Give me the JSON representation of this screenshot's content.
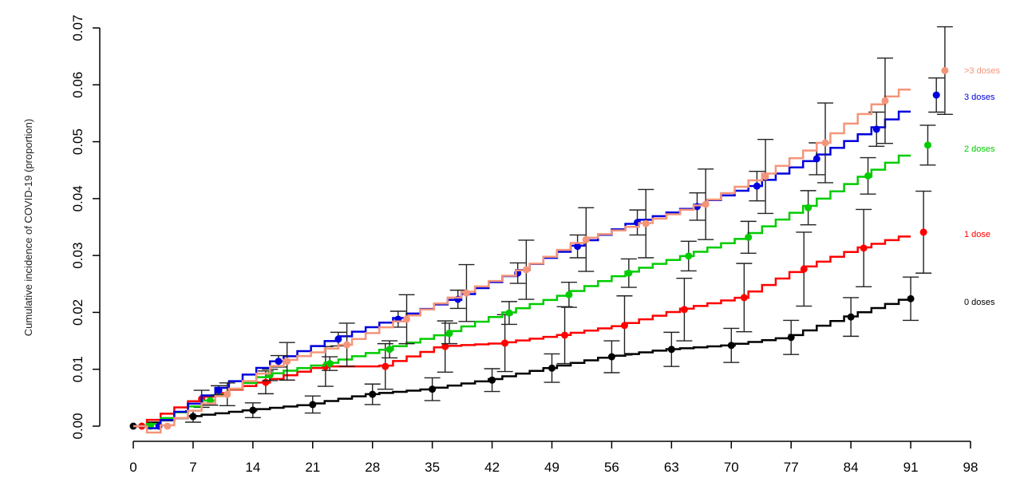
{
  "chart_data": {
    "type": "line",
    "title": "",
    "xlabel": "",
    "ylabel": "Cumulative incidence of COVID-19 (proportion)",
    "xlim": [
      0,
      98
    ],
    "ylim": [
      0,
      0.07
    ],
    "xticks": [
      "0",
      "7",
      "14",
      "21",
      "28",
      "35",
      "42",
      "49",
      "56",
      "63",
      "70",
      "77",
      "84",
      "91",
      "98"
    ],
    "yticks": [
      "0.00",
      "0.01",
      "0.02",
      "0.03",
      "0.04",
      "0.05",
      "0.06",
      "0.07"
    ],
    "grid": false,
    "legend_placement": "right, inline labels",
    "series": [
      {
        "name": "0 doses",
        "label": "0 doses",
        "color": "#000000",
        "x": [
          0,
          7,
          14,
          21,
          28,
          35,
          42,
          49,
          56,
          63,
          70,
          77,
          84,
          91
        ],
        "y": [
          0,
          0.0017,
          0.0028,
          0.0038,
          0.0056,
          0.0065,
          0.0081,
          0.0102,
          0.0122,
          0.0135,
          0.0142,
          0.0156,
          0.0192,
          0.0224
        ],
        "err": [
          0,
          0.001,
          0.0013,
          0.0015,
          0.0018,
          0.002,
          0.002,
          0.0025,
          0.0028,
          0.003,
          0.003,
          0.003,
          0.0034,
          0.0038
        ]
      },
      {
        "name": "1 dose",
        "label": "1 dose",
        "color": "#ff0000",
        "x": [
          1,
          8,
          15.5,
          22.5,
          29.5,
          36.5,
          43.5,
          50.5,
          57.5,
          64.5,
          71.5,
          78.5,
          85.5,
          92.5
        ],
        "y": [
          0,
          0.0048,
          0.0077,
          0.0105,
          0.0105,
          0.014,
          0.0146,
          0.016,
          0.0177,
          0.0205,
          0.0226,
          0.0276,
          0.0313,
          0.0341
        ],
        "err": [
          0,
          0.0015,
          0.002,
          0.0035,
          0.004,
          0.0045,
          0.005,
          0.005,
          0.0052,
          0.0055,
          0.006,
          0.0065,
          0.0068,
          0.0072
        ]
      },
      {
        "name": "2 doses",
        "label": "2 doses",
        "color": "#00cc00",
        "x": [
          2,
          9,
          16,
          23,
          30,
          37,
          44,
          51,
          58,
          65,
          72,
          79,
          86,
          93
        ],
        "y": [
          0,
          0.0045,
          0.009,
          0.011,
          0.0135,
          0.0163,
          0.0199,
          0.0231,
          0.0269,
          0.0299,
          0.0332,
          0.0384,
          0.044,
          0.0494
        ],
        "err": [
          0,
          0.0008,
          0.001,
          0.0012,
          0.0015,
          0.0018,
          0.002,
          0.0022,
          0.0025,
          0.0026,
          0.0028,
          0.003,
          0.0032,
          0.0035
        ]
      },
      {
        "name": "3 doses",
        "label": "3 doses",
        "color": "#0000dd",
        "x": [
          3,
          10,
          17,
          24,
          31,
          38,
          45,
          52,
          59,
          66,
          73,
          80,
          87,
          94
        ],
        "y": [
          0,
          0.0063,
          0.0114,
          0.0153,
          0.0188,
          0.0223,
          0.0269,
          0.0316,
          0.0358,
          0.0386,
          0.0422,
          0.047,
          0.0522,
          0.0582
        ],
        "err": [
          0,
          0.0008,
          0.001,
          0.0012,
          0.0014,
          0.0016,
          0.0018,
          0.002,
          0.0022,
          0.0024,
          0.0026,
          0.0028,
          0.003,
          0.003
        ]
      },
      {
        "name": ">3 doses",
        "label": ">3 doses",
        "color": "#f4957a",
        "x": [
          4,
          11,
          18,
          25,
          32,
          39,
          46,
          53,
          60,
          67,
          74,
          81,
          88,
          95
        ],
        "y": [
          0,
          0.0056,
          0.0114,
          0.0143,
          0.0188,
          0.0234,
          0.0275,
          0.0328,
          0.0356,
          0.039,
          0.0439,
          0.0498,
          0.0572,
          0.0625
        ],
        "err": [
          0,
          0.002,
          0.0033,
          0.0038,
          0.0043,
          0.005,
          0.0052,
          0.0056,
          0.006,
          0.0062,
          0.0065,
          0.007,
          0.0075,
          0.0077
        ]
      }
    ]
  }
}
